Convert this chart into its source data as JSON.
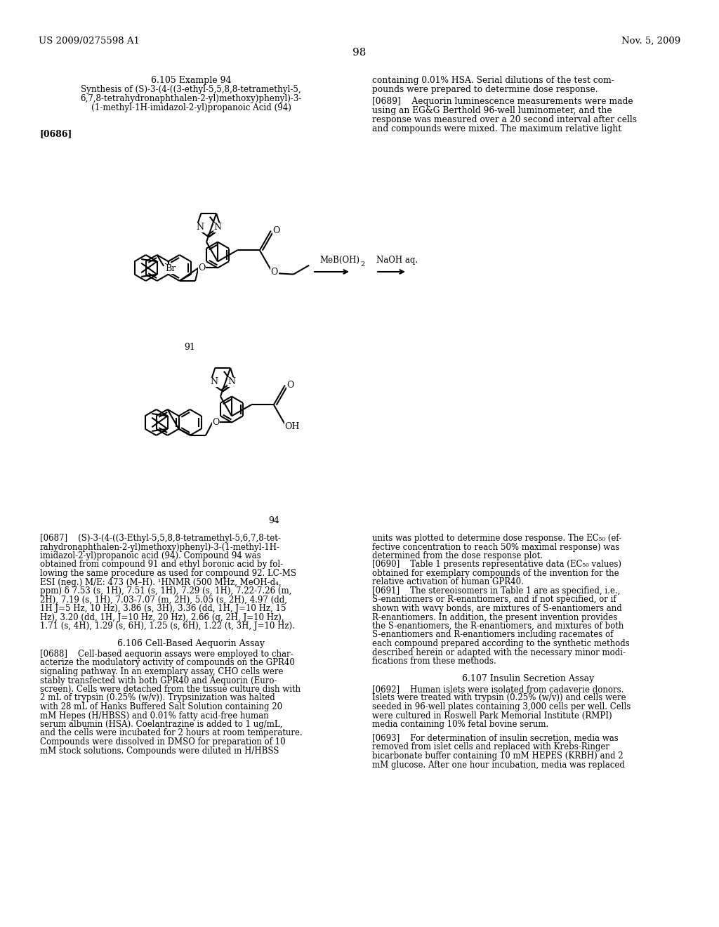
{
  "bg": "#ffffff",
  "header_left": "US 2009/0275598 A1",
  "header_right": "Nov. 5, 2009",
  "page_num": "98",
  "sec_title": "6.105 Example 94",
  "sub_lines": [
    "Synthesis of (S)-3-(4-((3-ethyl-5,5,8,8-tetramethyl-5,",
    "6,7,8-tetrahydronaphthalen-2-yl)methoxy)phenyl)-3-",
    "(1-methyl-1H-imidazol-2-yl)propanoic Acid (94)"
  ],
  "ref686": "[0686]",
  "right_top": [
    "containing 0.01% HSA. Serial dilutions of the test com-",
    "pounds were prepared to determine dose response."
  ],
  "ref689_lines": [
    "[0689]    Aequorin luminescence measurements were made",
    "using an EG&G Berthold 96-well luminometer, and the",
    "response was measured over a 20 second interval after cells",
    "and compounds were mixed. The maximum relative light"
  ],
  "label91": "91",
  "label94": "94",
  "reagent1": "MeB(OH)",
  "reagent2": "NaOH aq.",
  "sec_assay": "6.106 Cell-Based Aequorin Assay",
  "ref687_lines": [
    "[0687]    (S)-3-(4-((3-Ethyl-5,5,8,8-tetramethyl-5,6,7,8-tet-",
    "rahydronaphthalen-2-yl)methoxy)phenyl)-3-(1-methyl-1H-",
    "imidazol-2-yl)propanoic acid (94). Compound 94 was",
    "obtained from compound 91 and ethyl boronic acid by fol-",
    "lowing the same procedure as used for compound 92. LC-MS",
    "ESI (neg.) M/E: 473 (M–H). ¹HNMR (500 MHz, MeOH-d₄,",
    "ppm) δ 7.53 (s, 1H), 7.51 (s, 1H), 7.29 (s, 1H), 7.22-7.26 (m,",
    "2H), 7.19 (s, 1H), 7.03-7.07 (m, 2H), 5.05 (s, 2H), 4.97 (dd,",
    "1H J=5 Hz, 10 Hz), 3.86 (s, 3H), 3.36 (dd, 1H, J=10 Hz, 15",
    "Hz), 3.20 (dd, 1H, J=10 Hz, 20 Hz), 2.66 (q, 2H, J=10 Hz),",
    "1.71 (s, 4H), 1.29 (s, 6H), 1.25 (s, 6H), 1.22 (t, 3H, J=10 Hz)."
  ],
  "ref688_lines": [
    "[0688]    Cell-based aequorin assays were employed to char-",
    "acterize the modulatory activity of compounds on the GPR40",
    "signaling pathway. In an exemplary assay, CHO cells were",
    "stably transfected with both GPR40 and Aequorin (Euro-",
    "screen). Cells were detached from the tissue culture dish with",
    "2 mL of trypsin (0.25% (w/v)). Trypsinization was halted",
    "with 28 mL of Hanks Buffered Salt Solution containing 20",
    "mM Hepes (H/HBSS) and 0.01% fatty acid-free human",
    "serum albumin (HSA). Coelantrazine is added to 1 ug/mL,",
    "and the cells were incubated for 2 hours at room temperature.",
    "Compounds were dissolved in DMSO for preparation of 10",
    "mM stock solutions. Compounds were diluted in H/HBSS"
  ],
  "ref690_lines": [
    "units was plotted to determine dose response. The EC₅₀ (ef-",
    "fective concentration to reach 50% maximal response) was",
    "determined from the dose response plot.",
    "[0690]    Table 1 presents representative data (EC₅₀ values)",
    "obtained for exemplary compounds of the invention for the",
    "relative activation of human GPR40.",
    "[0691]    The stereoisomers in Table 1 are as specified, i.e.,",
    "S-enantiomers or R-enantiomers, and if not specified, or if",
    "shown with wavy bonds, are mixtures of S-enantiomers and",
    "R-enantiomers. In addition, the present invention provides",
    "the S-enantiomers, the R-enantiomers, and mixtures of both",
    "S-enantiomers and R-enantiomers including racemates of",
    "each compound prepared according to the synthetic methods",
    "described herein or adapted with the necessary minor modi-",
    "fications from these methods."
  ],
  "sec_insulin": "6.107 Insulin Secretion Assay",
  "ref692_lines": [
    "[0692]    Human islets were isolated from cadaverie donors.",
    "Islets were treated with trypsin (0.25% (w/v)) and cells were",
    "seeded in 96-well plates containing 3,000 cells per well. Cells",
    "were cultured in Roswell Park Memorial Institute (RMPI)",
    "media containing 10% fetal bovine serum."
  ],
  "ref693_lines": [
    "[0693]    For determination of insulin secretion, media was",
    "removed from islet cells and replaced with Krebs-Ringer",
    "bicarbonate buffer containing 10 mM HEPES (KRBH) and 2",
    "mM glucose. After one hour incubation, media was replaced"
  ]
}
